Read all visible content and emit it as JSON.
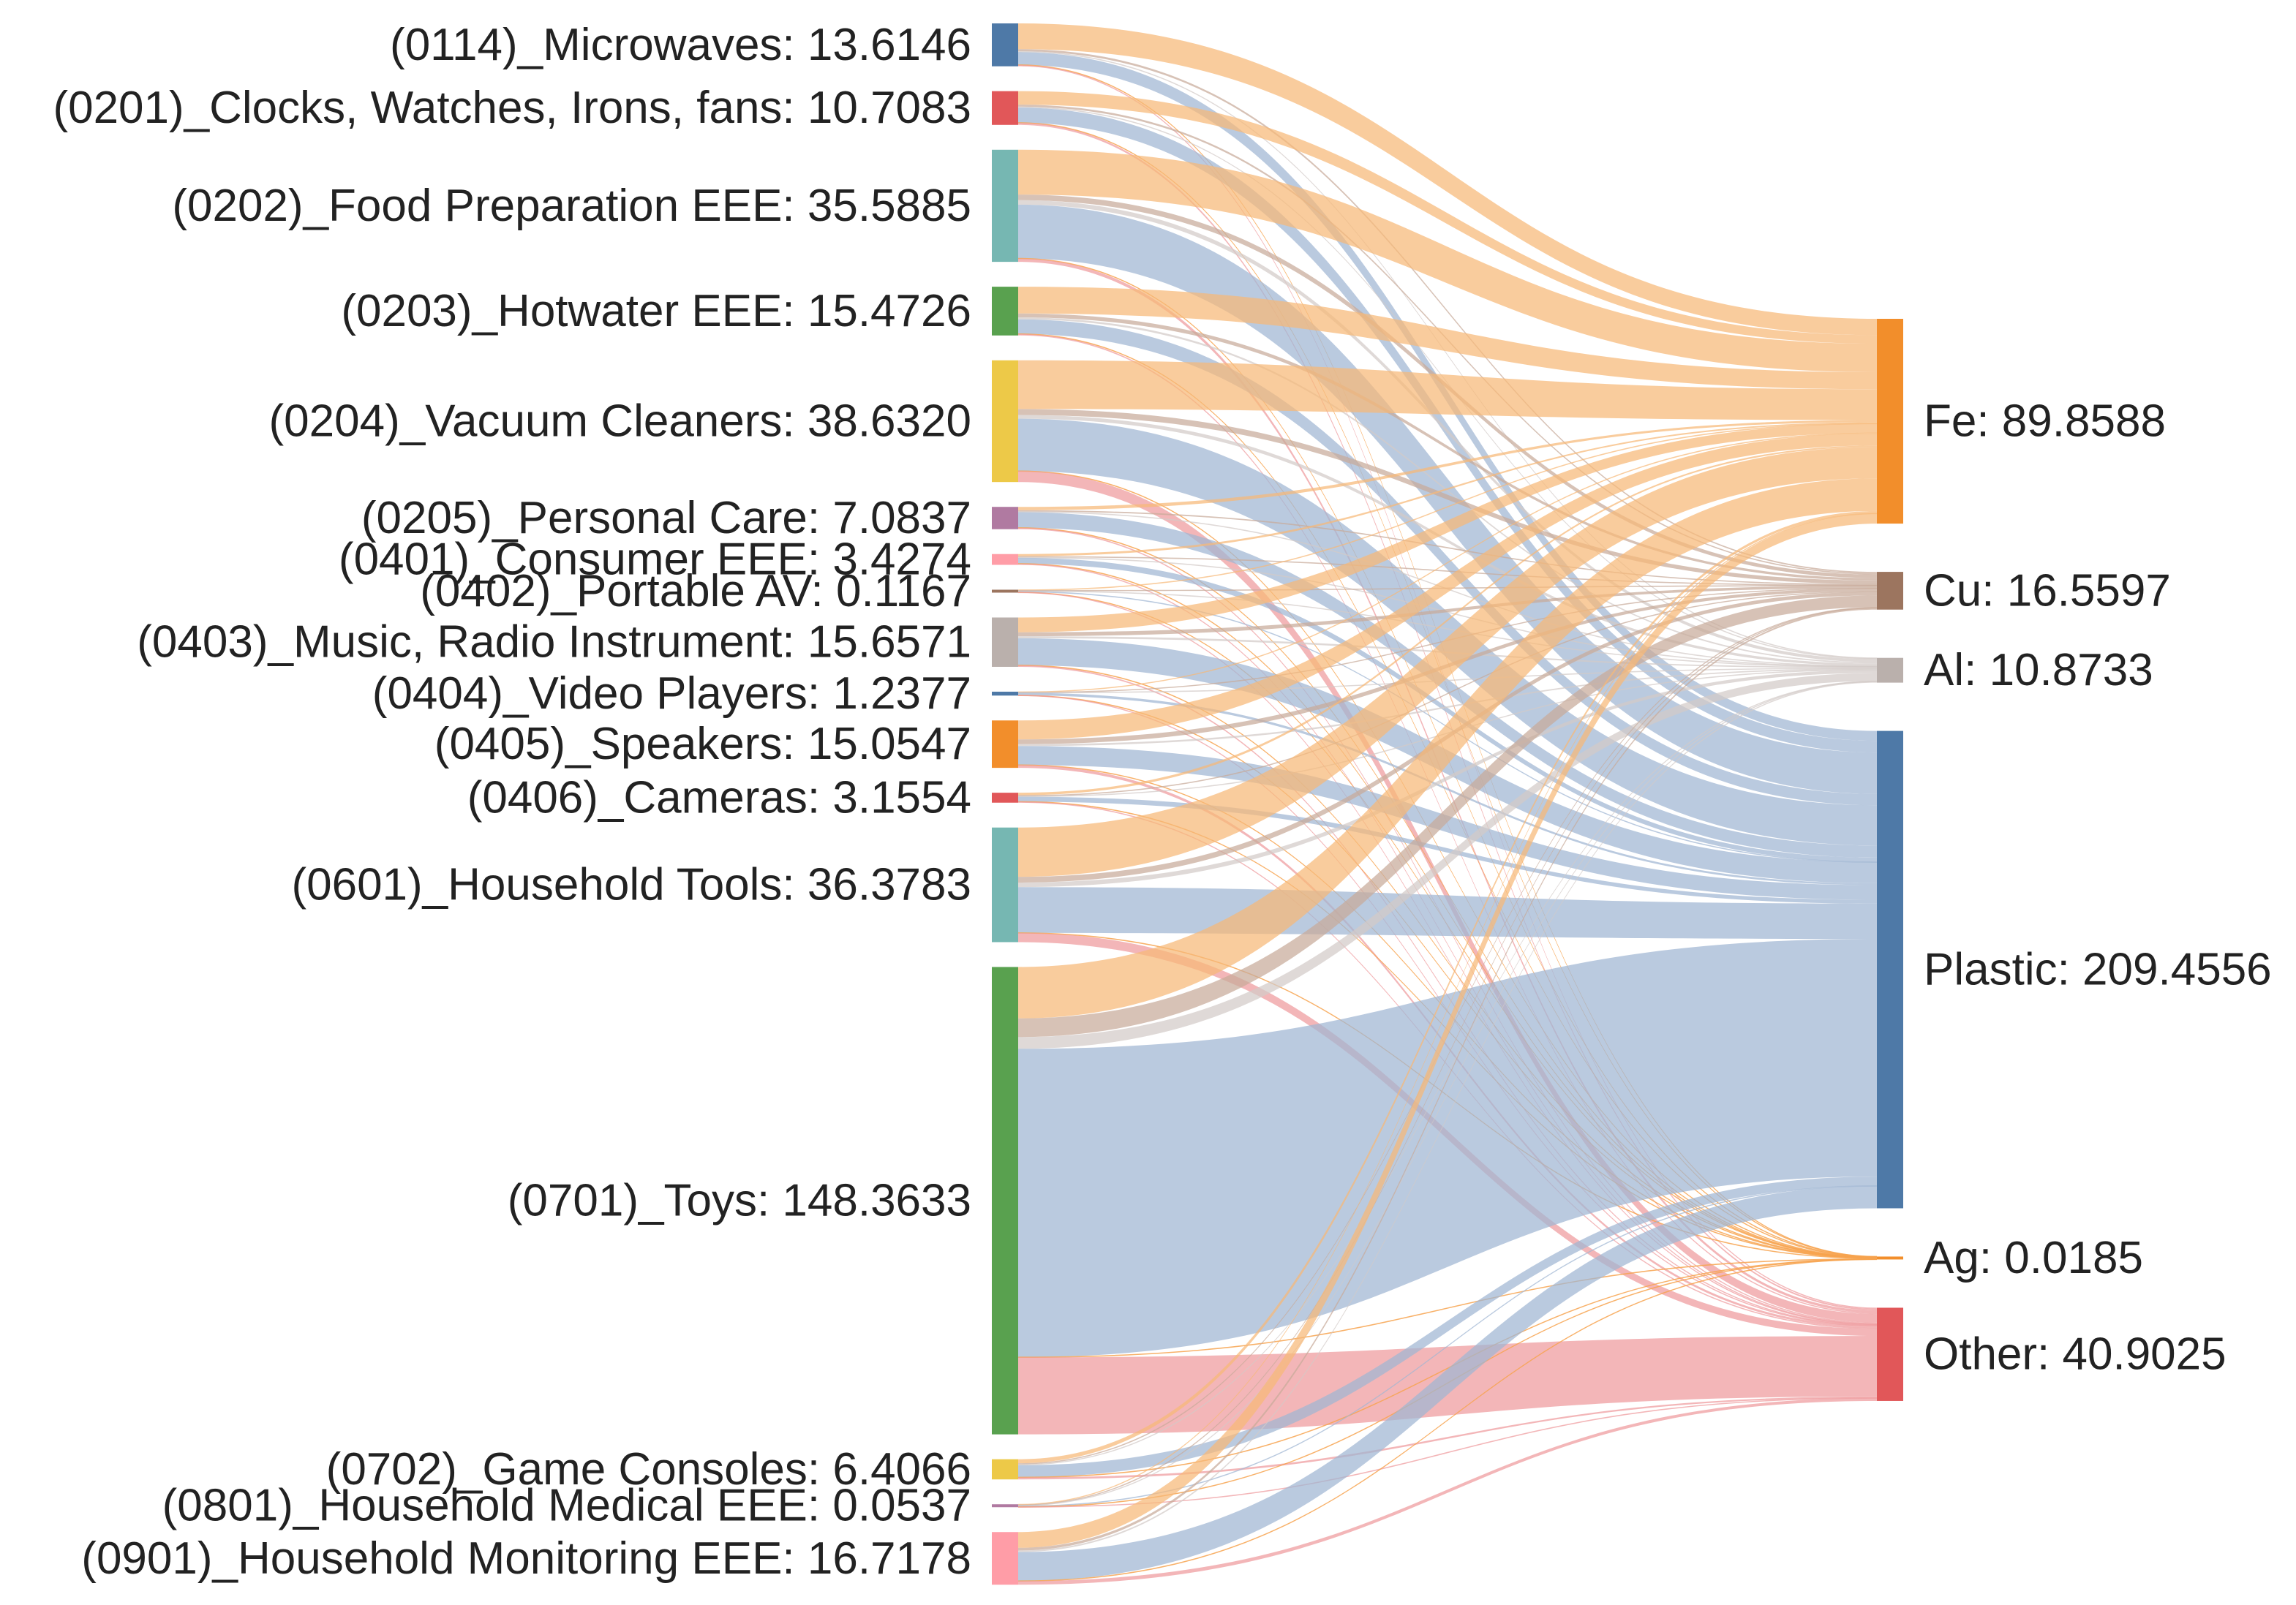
{
  "chart_data": {
    "type": "sankey",
    "title": "",
    "sources": [
      {
        "label": "(0114)_Microwaves: 13.6146",
        "value": 13.6146,
        "color": "#4e79a7"
      },
      {
        "label": "(0201)_Clocks, Watches, Irons, fans: 10.7083",
        "value": 10.7083,
        "color": "#e15759"
      },
      {
        "label": "(0202)_Food Preparation EEE: 35.5885",
        "value": 35.5885,
        "color": "#76b7b2"
      },
      {
        "label": "(0203)_Hotwater EEE: 15.4726",
        "value": 15.4726,
        "color": "#59a14f"
      },
      {
        "label": "(0204)_Vacuum Cleaners: 38.6320",
        "value": 38.632,
        "color": "#edc948"
      },
      {
        "label": "(0205)_Personal Care: 7.0837",
        "value": 7.0837,
        "color": "#b07aa1"
      },
      {
        "label": "(0401)_Consumer EEE: 3.4274",
        "value": 3.4274,
        "color": "#ff9da7"
      },
      {
        "label": "(0402)_Portable AV: 0.1167",
        "value": 0.1167,
        "color": "#9c755f"
      },
      {
        "label": "(0403)_Music, Radio Instrument: 15.6571",
        "value": 15.6571,
        "color": "#bab0ac"
      },
      {
        "label": "(0404)_Video Players: 1.2377",
        "value": 1.2377,
        "color": "#4e79a7"
      },
      {
        "label": "(0405)_Speakers: 15.0547",
        "value": 15.0547,
        "color": "#f28e2b"
      },
      {
        "label": "(0406)_Cameras: 3.1554",
        "value": 3.1554,
        "color": "#e15759"
      },
      {
        "label": "(0601)_Household Tools: 36.3783",
        "value": 36.3783,
        "color": "#76b7b2"
      },
      {
        "label": "(0701)_Toys: 148.3633",
        "value": 148.3633,
        "color": "#59a14f"
      },
      {
        "label": "(0702)_Game Consoles: 6.4066",
        "value": 6.4066,
        "color": "#edc948"
      },
      {
        "label": "(0801)_Household Medical EEE: 0.0537",
        "value": 0.0537,
        "color": "#b07aa1"
      },
      {
        "label": "(0901)_Household Monitoring EEE: 16.7178",
        "value": 16.7178,
        "color": "#ff9da7"
      }
    ],
    "targets": [
      {
        "label": "Fe: 89.8588",
        "value": 89.8588,
        "color": "#f28e2b"
      },
      {
        "label": "Cu: 16.5597",
        "value": 16.5597,
        "color": "#9c755f"
      },
      {
        "label": "Al: 10.8733",
        "value": 10.8733,
        "color": "#bab0ac"
      },
      {
        "label": "Plastic: 209.4556",
        "value": 209.4556,
        "color": "#4e79a7"
      },
      {
        "label": "Ag: 0.0185",
        "value": 0.0185,
        "color": "#f28e2b"
      },
      {
        "label": "Other: 40.9025",
        "value": 40.9025,
        "color": "#e15759"
      }
    ],
    "target_link_colors": [
      "#f7b877",
      "#c7ab9a",
      "#d2cbc8",
      "#9fb5d2",
      "#f7a34f",
      "#ef9a9c"
    ],
    "link_shares": [
      [
        0.6,
        0.05,
        0.02,
        0.3,
        0.0005,
        0.0295
      ],
      [
        0.4,
        0.06,
        0.03,
        0.45,
        0.0005,
        0.0595
      ],
      [
        0.4,
        0.05,
        0.04,
        0.48,
        0.0005,
        0.0295
      ],
      [
        0.55,
        0.08,
        0.04,
        0.3,
        0.0005,
        0.0295
      ],
      [
        0.4,
        0.05,
        0.03,
        0.43,
        0.0005,
        0.0895
      ],
      [
        0.15,
        0.06,
        0.03,
        0.7,
        0.0005,
        0.0595
      ],
      [
        0.2,
        0.1,
        0.05,
        0.55,
        0.0005,
        0.0995
      ],
      [
        0.25,
        0.15,
        0.1,
        0.4,
        0.0005,
        0.0995
      ],
      [
        0.3,
        0.08,
        0.04,
        0.55,
        0.0005,
        0.0295
      ],
      [
        0.2,
        0.05,
        0.05,
        0.65,
        0.0005,
        0.0495
      ],
      [
        0.4,
        0.1,
        0.04,
        0.4,
        0.0005,
        0.0595
      ],
      [
        0.25,
        0.1,
        0.05,
        0.5,
        0.0005,
        0.0995
      ],
      [
        0.43,
        0.05,
        0.04,
        0.4,
        0.0005,
        0.0795
      ],
      [
        0.11,
        0.04,
        0.025,
        0.66,
        0.0002,
        0.1648
      ],
      [
        0.2,
        0.06,
        0.04,
        0.6,
        0.0005,
        0.0995
      ],
      [
        0.2,
        0.2,
        0.1,
        0.4,
        0.0005,
        0.0995
      ],
      [
        0.3,
        0.05,
        0.03,
        0.55,
        0.0005,
        0.0695
      ]
    ]
  }
}
